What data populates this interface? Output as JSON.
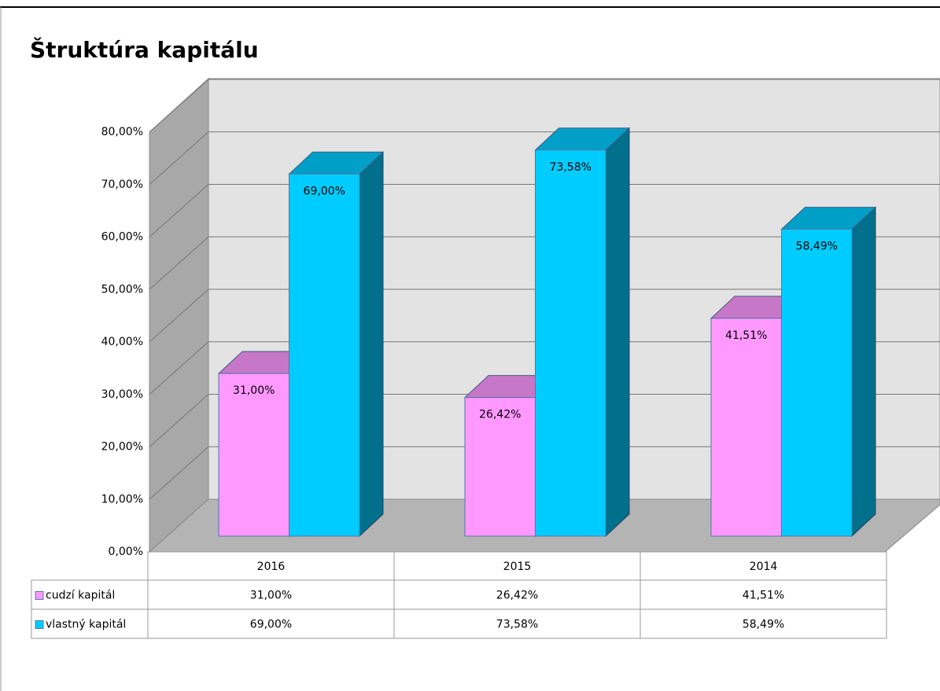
{
  "chart_data": {
    "type": "bar3d",
    "title": "Štruktúra kapitálu",
    "categories": [
      "2016",
      "2015",
      "2014"
    ],
    "series": [
      {
        "name": "cudzí kapitál",
        "color": "#ff99ff",
        "values": [
          31.0,
          26.42,
          41.51
        ],
        "value_labels": [
          "31,00%",
          "26,42%",
          "41,51%"
        ]
      },
      {
        "name": "vlastný kapitál",
        "color": "#00ccff",
        "values": [
          69.0,
          73.58,
          58.49
        ],
        "value_labels": [
          "69,00%",
          "73,58%",
          "58,49%"
        ]
      }
    ],
    "ylim": [
      0,
      80
    ],
    "yticks": [
      {
        "value": 0,
        "label": "0,00%"
      },
      {
        "value": 10,
        "label": "10,00%"
      },
      {
        "value": 20,
        "label": "20,00%"
      },
      {
        "value": 30,
        "label": "30,00%"
      },
      {
        "value": 40,
        "label": "40,00%"
      },
      {
        "value": 50,
        "label": "50,00%"
      },
      {
        "value": 60,
        "label": "60,00%"
      },
      {
        "value": 70,
        "label": "70,00%"
      },
      {
        "value": 80,
        "label": "80,00%"
      }
    ],
    "grid": true,
    "data_table": true
  }
}
